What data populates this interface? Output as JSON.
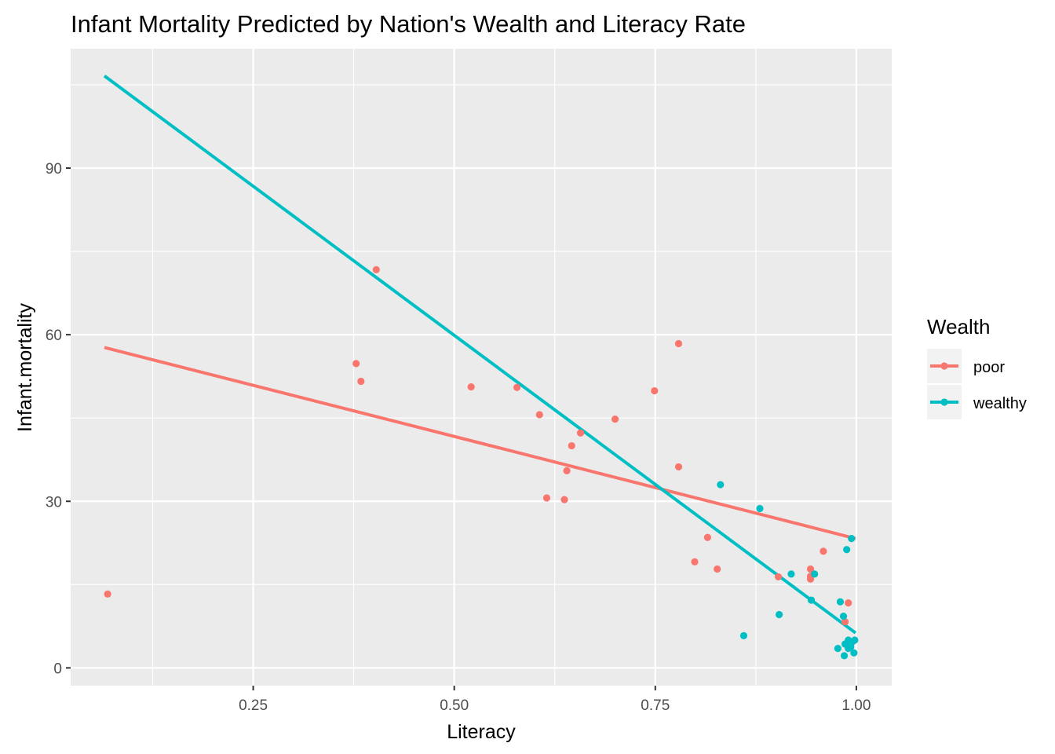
{
  "chart_data": {
    "type": "scatter",
    "title": "Infant Mortality Predicted by Nation's Wealth and Literacy Rate",
    "xlabel": "Literacy",
    "ylabel": "Infant.mortality",
    "xlim": [
      0.023,
      1.044
    ],
    "ylim": [
      -3.2,
      111.5
    ],
    "x_ticks": [
      0.25,
      0.5,
      0.75,
      1.0
    ],
    "x_tick_labels": [
      "0.25",
      "0.50",
      "0.75",
      "1.00"
    ],
    "y_ticks": [
      0,
      30,
      60,
      90
    ],
    "y_tick_labels": [
      "0",
      "30",
      "60",
      "90"
    ],
    "grid": true,
    "legend": {
      "title": "Wealth",
      "position": "right"
    },
    "series": [
      {
        "name": "poor",
        "color": "#F8766D",
        "points": [
          {
            "x": 0.069,
            "y": 13.3
          },
          {
            "x": 0.378,
            "y": 54.8
          },
          {
            "x": 0.384,
            "y": 51.6
          },
          {
            "x": 0.403,
            "y": 71.7
          },
          {
            "x": 0.521,
            "y": 50.6
          },
          {
            "x": 0.578,
            "y": 50.5
          },
          {
            "x": 0.606,
            "y": 45.6
          },
          {
            "x": 0.615,
            "y": 30.6
          },
          {
            "x": 0.637,
            "y": 30.3
          },
          {
            "x": 0.64,
            "y": 35.5
          },
          {
            "x": 0.646,
            "y": 40.0
          },
          {
            "x": 0.657,
            "y": 42.3
          },
          {
            "x": 0.7,
            "y": 44.8
          },
          {
            "x": 0.749,
            "y": 49.9
          },
          {
            "x": 0.779,
            "y": 58.4
          },
          {
            "x": 0.779,
            "y": 36.2
          },
          {
            "x": 0.799,
            "y": 19.1
          },
          {
            "x": 0.815,
            "y": 23.5
          },
          {
            "x": 0.827,
            "y": 17.8
          },
          {
            "x": 0.903,
            "y": 16.4
          },
          {
            "x": 0.943,
            "y": 17.8
          },
          {
            "x": 0.943,
            "y": 16.0
          },
          {
            "x": 0.943,
            "y": 16.5
          },
          {
            "x": 0.959,
            "y": 21.0
          },
          {
            "x": 0.986,
            "y": 8.3
          },
          {
            "x": 0.99,
            "y": 11.7
          }
        ],
        "trend": {
          "x": [
            0.065,
            0.999
          ],
          "y": [
            57.7,
            23.3
          ]
        }
      },
      {
        "name": "wealthy",
        "color": "#00BFC4",
        "points": [
          {
            "x": 0.831,
            "y": 33.0
          },
          {
            "x": 0.86,
            "y": 5.8
          },
          {
            "x": 0.88,
            "y": 28.7
          },
          {
            "x": 0.904,
            "y": 9.6
          },
          {
            "x": 0.919,
            "y": 16.9
          },
          {
            "x": 0.944,
            "y": 12.2
          },
          {
            "x": 0.948,
            "y": 16.9
          },
          {
            "x": 0.977,
            "y": 3.5
          },
          {
            "x": 0.98,
            "y": 11.9
          },
          {
            "x": 0.984,
            "y": 9.3
          },
          {
            "x": 0.985,
            "y": 2.2
          },
          {
            "x": 0.986,
            "y": 4.3
          },
          {
            "x": 0.988,
            "y": 21.3
          },
          {
            "x": 0.99,
            "y": 3.5
          },
          {
            "x": 0.99,
            "y": 5.0
          },
          {
            "x": 0.993,
            "y": 3.8
          },
          {
            "x": 0.994,
            "y": 23.3
          },
          {
            "x": 0.995,
            "y": 4.7
          },
          {
            "x": 0.997,
            "y": 2.7
          },
          {
            "x": 0.998,
            "y": 5.0
          }
        ],
        "trend": {
          "x": [
            0.065,
            0.999
          ],
          "y": [
            106.6,
            6.3
          ]
        }
      }
    ]
  }
}
